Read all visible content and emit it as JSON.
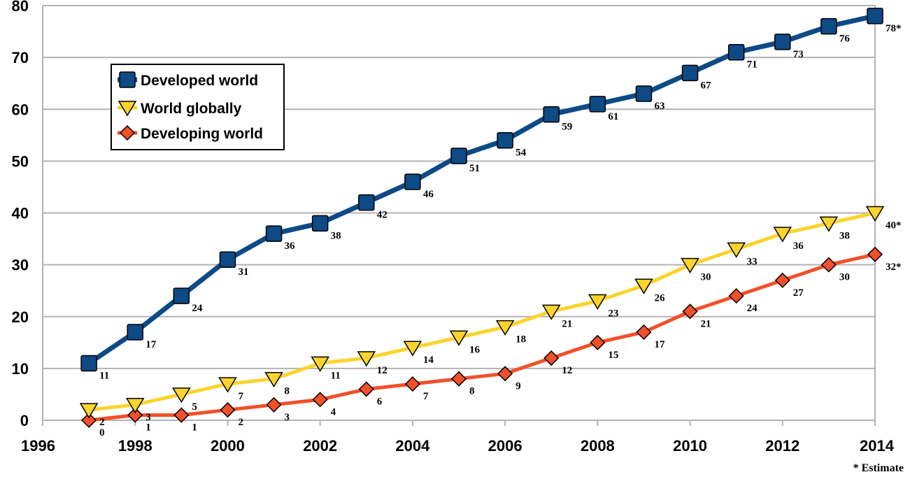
{
  "chart_data": {
    "type": "line",
    "title": "",
    "xlabel": "",
    "ylabel": "",
    "xlim": [
      1996,
      2014
    ],
    "ylim": [
      0,
      80
    ],
    "x_ticks": [
      "1996",
      "1998",
      "2000",
      "2002",
      "2004",
      "2006",
      "2008",
      "2010",
      "2012",
      "2014"
    ],
    "y_ticks": [
      "0",
      "10",
      "20",
      "30",
      "40",
      "50",
      "60",
      "70",
      "80"
    ],
    "grid": "horizontal",
    "legend_position": "top-left",
    "note": "* Estimate",
    "series": [
      {
        "name": "Developed world",
        "color": "#0d4a86",
        "marker": "square",
        "x": [
          1997,
          1998,
          1999,
          2000,
          2001,
          2002,
          2003,
          2004,
          2005,
          2006,
          2007,
          2008,
          2009,
          2010,
          2011,
          2012,
          2013,
          2014
        ],
        "values": [
          11,
          17,
          24,
          31,
          36,
          38,
          42,
          46,
          51,
          54,
          59,
          61,
          63,
          67,
          71,
          73,
          76,
          78
        ],
        "labels": [
          "11",
          "17",
          "24",
          "31",
          "36",
          "38",
          "42",
          "46",
          "51",
          "54",
          "59",
          "61",
          "63",
          "67",
          "71",
          "73",
          "76",
          "78*"
        ]
      },
      {
        "name": "World globally",
        "color": "#fad42c",
        "marker": "triangle-down",
        "x": [
          1997,
          1998,
          1999,
          2000,
          2001,
          2002,
          2003,
          2004,
          2005,
          2006,
          2007,
          2008,
          2009,
          2010,
          2011,
          2012,
          2013,
          2014
        ],
        "values": [
          2,
          3,
          5,
          7,
          8,
          11,
          12,
          14,
          16,
          18,
          21,
          23,
          26,
          30,
          33,
          36,
          38,
          40
        ],
        "labels": [
          "2",
          "3",
          "5",
          "7",
          "8",
          "11",
          "12",
          "14",
          "16",
          "18",
          "21",
          "23",
          "26",
          "30",
          "33",
          "36",
          "38",
          "40*"
        ]
      },
      {
        "name": "Developing world",
        "color": "#f2502a",
        "marker": "diamond",
        "x": [
          1997,
          1998,
          1999,
          2000,
          2001,
          2002,
          2003,
          2004,
          2005,
          2006,
          2007,
          2008,
          2009,
          2010,
          2011,
          2012,
          2013,
          2014
        ],
        "values": [
          0,
          1,
          1,
          2,
          3,
          4,
          6,
          7,
          8,
          9,
          12,
          15,
          17,
          21,
          24,
          27,
          30,
          32
        ],
        "labels": [
          "0",
          "1",
          "1",
          "2",
          "3",
          "4",
          "6",
          "7",
          "8",
          "9",
          "12",
          "15",
          "17",
          "21",
          "24",
          "27",
          "30",
          "32*"
        ]
      }
    ]
  }
}
